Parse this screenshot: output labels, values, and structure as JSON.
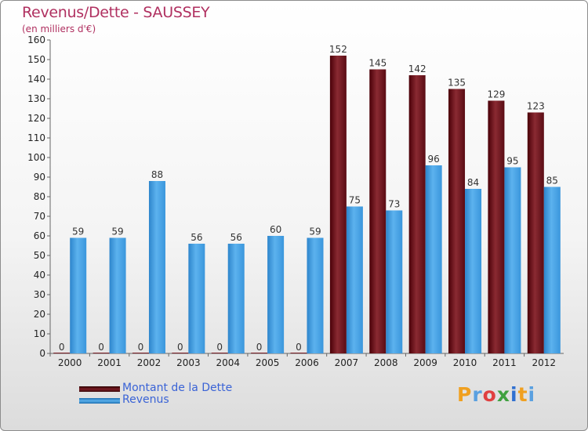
{
  "title": "Revenus/Dette - SAUSSEY",
  "subtitle": "(en milliers d'€)",
  "colors": {
    "dette": "#7a1c24",
    "revenus": "#3f9be0",
    "title": "#b03060",
    "legend_text": "#3a63d6"
  },
  "logo": {
    "letters": [
      "P",
      "r",
      "o",
      "x",
      "i",
      "t",
      "i"
    ],
    "letter_colors": [
      "#f0a020",
      "#5aa0e0",
      "#e04040",
      "#40a040",
      "#3070d0",
      "#f0a020",
      "#5aa0e0"
    ]
  },
  "chart_data": {
    "type": "bar",
    "title": "Revenus/Dette - SAUSSEY",
    "subtitle": "(en milliers d'€)",
    "xlabel": "",
    "ylabel": "",
    "ylim": [
      0,
      160
    ],
    "yticks": [
      0,
      10,
      20,
      30,
      40,
      50,
      60,
      70,
      80,
      90,
      100,
      110,
      120,
      130,
      140,
      150,
      160
    ],
    "grid": false,
    "legend_position": "bottom-left",
    "categories": [
      "2000",
      "2001",
      "2002",
      "2003",
      "2004",
      "2005",
      "2006",
      "2007",
      "2008",
      "2009",
      "2010",
      "2011",
      "2012"
    ],
    "series": [
      {
        "name": "Montant de la Dette",
        "color": "#7a1c24",
        "values": [
          0,
          0,
          0,
          0,
          0,
          0,
          0,
          152,
          145,
          142,
          135,
          129,
          123
        ]
      },
      {
        "name": "Revenus",
        "color": "#3f9be0",
        "values": [
          59,
          59,
          88,
          56,
          56,
          60,
          59,
          75,
          73,
          96,
          84,
          95,
          85
        ]
      }
    ]
  }
}
